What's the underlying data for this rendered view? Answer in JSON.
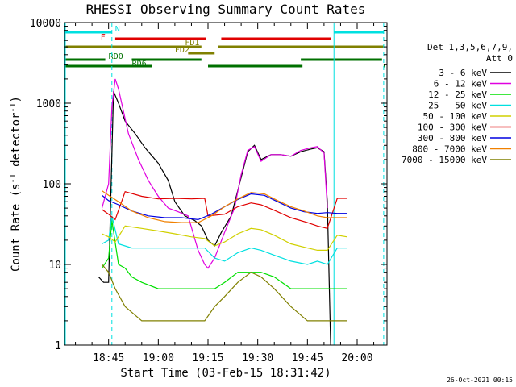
{
  "chart_data": {
    "type": "line",
    "title": "RHESSI Observing Summary Count Rates",
    "xlabel": "Start Time (03-Feb-15 18:31:42)",
    "ylabel": "Count Rate (s⁻¹ detector⁻¹)",
    "ylabel_main": "Count Rate (s",
    "ylabel_sup1": "-1",
    "ylabel_mid": " detector",
    "ylabel_sup2": "-1",
    "ylabel_end": ")",
    "footer": "26-Oct-2021 00:15",
    "y_scale": "log",
    "ylim": [
      1,
      10000
    ],
    "xlim": [
      "18:31:42",
      "20:09:00"
    ],
    "xticks": [
      "18:45",
      "19:00",
      "19:15",
      "19:30",
      "19:45",
      "20:00"
    ],
    "yticks": [
      "1",
      "10",
      "100",
      "1000",
      "10000"
    ],
    "legend_header": [
      "Det 1,3,5,6,7,9,",
      "Att 0"
    ],
    "series": [
      {
        "name": "3 - 6 keV",
        "color": "#000000",
        "points": [
          [
            "18:42:00",
            7
          ],
          [
            "18:43:30",
            6
          ],
          [
            "18:45:00",
            6
          ],
          [
            "18:46:30",
            1400
          ],
          [
            "18:48:00",
            1000
          ],
          [
            "18:50:00",
            600
          ],
          [
            "18:53:00",
            420
          ],
          [
            "18:56:00",
            280
          ],
          [
            "19:00:00",
            180
          ],
          [
            "19:03:00",
            110
          ],
          [
            "19:05:00",
            60
          ],
          [
            "19:08:00",
            40
          ],
          [
            "19:11:00",
            35
          ],
          [
            "19:13:00",
            30
          ],
          [
            "19:15:00",
            20
          ],
          [
            "19:17:00",
            17
          ],
          [
            "19:19:00",
            25
          ],
          [
            "19:22:00",
            40
          ],
          [
            "19:25:00",
            120
          ],
          [
            "19:27:00",
            250
          ],
          [
            "19:29:00",
            300
          ],
          [
            "19:31:00",
            200
          ],
          [
            "19:34:00",
            230
          ],
          [
            "19:37:00",
            230
          ],
          [
            "19:40:00",
            220
          ],
          [
            "19:43:00",
            250
          ],
          [
            "19:46:00",
            270
          ],
          [
            "19:48:00",
            280
          ],
          [
            "19:50:00",
            250
          ],
          [
            "19:51:00",
            60
          ],
          [
            "19:52:00",
            1
          ]
        ]
      },
      {
        "name": "6 - 12 keV",
        "color": "#e000e0",
        "points": [
          [
            "18:43:00",
            50
          ],
          [
            "18:45:00",
            100
          ],
          [
            "18:46:00",
            900
          ],
          [
            "18:47:00",
            2000
          ],
          [
            "18:48:00",
            1500
          ],
          [
            "18:51:00",
            420
          ],
          [
            "18:54:00",
            200
          ],
          [
            "18:57:00",
            110
          ],
          [
            "19:00:00",
            70
          ],
          [
            "19:03:00",
            50
          ],
          [
            "19:06:00",
            45
          ],
          [
            "19:09:00",
            40
          ],
          [
            "19:12:00",
            15
          ],
          [
            "19:14:00",
            10
          ],
          [
            "19:15:00",
            9
          ],
          [
            "19:17:00",
            12
          ],
          [
            "19:20:00",
            25
          ],
          [
            "19:23:00",
            50
          ],
          [
            "19:25:00",
            130
          ],
          [
            "19:27:00",
            260
          ],
          [
            "19:29:00",
            290
          ],
          [
            "19:31:00",
            190
          ],
          [
            "19:34:00",
            230
          ],
          [
            "19:37:00",
            230
          ],
          [
            "19:40:00",
            220
          ],
          [
            "19:43:00",
            260
          ],
          [
            "19:46:00",
            280
          ],
          [
            "19:48:00",
            290
          ],
          [
            "19:50:00",
            240
          ],
          [
            "19:51:00",
            50
          ]
        ]
      },
      {
        "name": "12 - 25 keV",
        "color": "#00e000",
        "points": [
          [
            "18:43:00",
            9
          ],
          [
            "18:45:00",
            12
          ],
          [
            "18:46:00",
            35
          ],
          [
            "18:48:00",
            10
          ],
          [
            "18:50:00",
            9
          ],
          [
            "18:52:00",
            7
          ],
          [
            "18:55:00",
            6
          ],
          [
            "19:00:00",
            5
          ],
          [
            "19:05:00",
            5
          ],
          [
            "19:10:00",
            5
          ],
          [
            "19:14:00",
            5
          ],
          [
            "19:17:00",
            5
          ],
          [
            "19:20:00",
            6
          ],
          [
            "19:24:00",
            8
          ],
          [
            "19:28:00",
            8
          ],
          [
            "19:31:00",
            8
          ],
          [
            "19:35:00",
            7
          ],
          [
            "19:40:00",
            5
          ],
          [
            "19:45:00",
            5
          ],
          [
            "19:50:00",
            5
          ],
          [
            "19:53:00",
            5
          ],
          [
            "19:57:00",
            5
          ]
        ]
      },
      {
        "name": "25 - 50 keV",
        "color": "#00e0e0",
        "points": [
          [
            "18:43:00",
            18
          ],
          [
            "18:45:00",
            20
          ],
          [
            "18:46:00",
            40
          ],
          [
            "18:48:00",
            18
          ],
          [
            "18:52:00",
            16
          ],
          [
            "18:55:00",
            16
          ],
          [
            "19:00:00",
            16
          ],
          [
            "19:05:00",
            16
          ],
          [
            "19:10:00",
            16
          ],
          [
            "19:14:00",
            16
          ],
          [
            "19:17:00",
            12
          ],
          [
            "19:20:00",
            11
          ],
          [
            "19:24:00",
            14
          ],
          [
            "19:28:00",
            16
          ],
          [
            "19:31:00",
            15
          ],
          [
            "19:35:00",
            13
          ],
          [
            "19:40:00",
            11
          ],
          [
            "19:45:00",
            10
          ],
          [
            "19:48:00",
            11
          ],
          [
            "19:51:00",
            10
          ],
          [
            "19:54:00",
            16
          ],
          [
            "19:57:00",
            16
          ]
        ]
      },
      {
        "name": "50 - 100 keV",
        "color": "#d0d000",
        "points": [
          [
            "18:43:00",
            24
          ],
          [
            "18:45:00",
            22
          ],
          [
            "18:47:00",
            19
          ],
          [
            "18:50:00",
            30
          ],
          [
            "18:55:00",
            28
          ],
          [
            "19:00:00",
            26
          ],
          [
            "19:05:00",
            24
          ],
          [
            "19:10:00",
            22
          ],
          [
            "19:14:00",
            21
          ],
          [
            "19:17:00",
            17
          ],
          [
            "19:20:00",
            19
          ],
          [
            "19:24:00",
            24
          ],
          [
            "19:28:00",
            28
          ],
          [
            "19:31:00",
            27
          ],
          [
            "19:35:00",
            23
          ],
          [
            "19:40:00",
            18
          ],
          [
            "19:45:00",
            16
          ],
          [
            "19:48:00",
            15
          ],
          [
            "19:51:00",
            15
          ],
          [
            "19:54:00",
            23
          ],
          [
            "19:57:00",
            22
          ]
        ]
      },
      {
        "name": "100 - 300 keV",
        "color": "#e00000",
        "points": [
          [
            "18:43:00",
            48
          ],
          [
            "18:45:00",
            42
          ],
          [
            "18:47:00",
            36
          ],
          [
            "18:50:00",
            80
          ],
          [
            "18:55:00",
            70
          ],
          [
            "19:00:00",
            65
          ],
          [
            "19:05:00",
            66
          ],
          [
            "19:10:00",
            65
          ],
          [
            "19:14:00",
            66
          ],
          [
            "19:15:00",
            40
          ],
          [
            "19:20:00",
            42
          ],
          [
            "19:24:00",
            52
          ],
          [
            "19:28:00",
            58
          ],
          [
            "19:31:00",
            55
          ],
          [
            "19:35:00",
            47
          ],
          [
            "19:40:00",
            38
          ],
          [
            "19:45:00",
            33
          ],
          [
            "19:48:00",
            30
          ],
          [
            "19:51:00",
            28
          ],
          [
            "19:54:00",
            66
          ],
          [
            "19:57:00",
            66
          ]
        ]
      },
      {
        "name": "300 - 800 keV",
        "color": "#0000e0",
        "points": [
          [
            "18:43:00",
            72
          ],
          [
            "18:45:00",
            62
          ],
          [
            "18:48:00",
            55
          ],
          [
            "18:52:00",
            46
          ],
          [
            "18:57:00",
            40
          ],
          [
            "19:02:00",
            38
          ],
          [
            "19:07:00",
            38
          ],
          [
            "19:12:00",
            36
          ],
          [
            "19:16:00",
            42
          ],
          [
            "19:20:00",
            52
          ],
          [
            "19:24:00",
            64
          ],
          [
            "19:28:00",
            75
          ],
          [
            "19:32:00",
            72
          ],
          [
            "19:36:00",
            60
          ],
          [
            "19:40:00",
            50
          ],
          [
            "19:44:00",
            45
          ],
          [
            "19:48:00",
            43
          ],
          [
            "19:51:00",
            44
          ],
          [
            "19:54:00",
            43
          ],
          [
            "19:57:00",
            43
          ]
        ]
      },
      {
        "name": "800 - 7000 keV",
        "color": "#f08000",
        "points": [
          [
            "18:43:00",
            82
          ],
          [
            "18:45:00",
            72
          ],
          [
            "18:48:00",
            60
          ],
          [
            "18:52:00",
            46
          ],
          [
            "18:57:00",
            38
          ],
          [
            "19:02:00",
            34
          ],
          [
            "19:07:00",
            33
          ],
          [
            "19:12:00",
            33
          ],
          [
            "19:16:00",
            40
          ],
          [
            "19:20:00",
            52
          ],
          [
            "19:24:00",
            65
          ],
          [
            "19:28:00",
            78
          ],
          [
            "19:32:00",
            75
          ],
          [
            "19:36:00",
            62
          ],
          [
            "19:40:00",
            52
          ],
          [
            "19:44:00",
            46
          ],
          [
            "19:48:00",
            40
          ],
          [
            "19:51:00",
            38
          ],
          [
            "19:54:00",
            38
          ],
          [
            "19:57:00",
            38
          ]
        ]
      },
      {
        "name": "7000 - 15000 keV",
        "color": "#808000",
        "points": [
          [
            "18:43:00",
            10
          ],
          [
            "18:45:00",
            8
          ],
          [
            "18:47:00",
            5
          ],
          [
            "18:50:00",
            3
          ],
          [
            "18:55:00",
            2
          ],
          [
            "19:00:00",
            2
          ],
          [
            "19:05:00",
            2
          ],
          [
            "19:10:00",
            2
          ],
          [
            "19:14:00",
            2
          ],
          [
            "19:17:00",
            3
          ],
          [
            "19:20:00",
            4
          ],
          [
            "19:24:00",
            6
          ],
          [
            "19:28:00",
            8
          ],
          [
            "19:31:00",
            7
          ],
          [
            "19:35:00",
            5
          ],
          [
            "19:40:00",
            3
          ],
          [
            "19:45:00",
            2
          ],
          [
            "19:48:00",
            2
          ],
          [
            "19:51:00",
            2
          ],
          [
            "19:54:00",
            2
          ],
          [
            "19:57:00",
            2
          ]
        ]
      }
    ],
    "flags": [
      {
        "label": "N",
        "color": "#00e0e0",
        "segments": [
          [
            "18:31:42",
            "18:46:00"
          ],
          [
            "19:53:00",
            "20:08:00"
          ]
        ]
      },
      {
        "label": "F",
        "color": "#e00000",
        "segments": [
          [
            "18:47:00",
            "19:14:30"
          ],
          [
            "19:19:00",
            "19:52:00"
          ]
        ]
      },
      {
        "label": "FD1",
        "color": "#808000",
        "segments": [
          [
            "18:31:42",
            "19:13:00"
          ],
          [
            "19:18:00",
            "20:08:00"
          ]
        ]
      },
      {
        "label": "FD2",
        "color": "#808000",
        "segments": [
          [
            "19:09:00",
            "19:17:00"
          ]
        ]
      },
      {
        "label": "RD0",
        "color": "#007000",
        "segments": [
          [
            "18:31:42",
            "18:44:00"
          ],
          [
            "18:52:00",
            "19:13:00"
          ],
          [
            "19:43:00",
            "20:07:30"
          ]
        ]
      },
      {
        "label": "RD6",
        "color": "#007000",
        "segments": [
          [
            "18:31:42",
            "18:58:00"
          ],
          [
            "19:15:00",
            "19:43:30"
          ],
          [
            "20:08:00",
            "20:08:30"
          ]
        ]
      }
    ],
    "vlines": [
      {
        "time": "18:31:42",
        "color": "#00e0e0",
        "style": "solid"
      },
      {
        "time": "18:46:00",
        "color": "#00e0e0",
        "style": "dashed"
      },
      {
        "time": "19:53:00",
        "color": "#00e0e0",
        "style": "solid"
      },
      {
        "time": "20:08:00",
        "color": "#00e0e0",
        "style": "dashed"
      }
    ]
  }
}
